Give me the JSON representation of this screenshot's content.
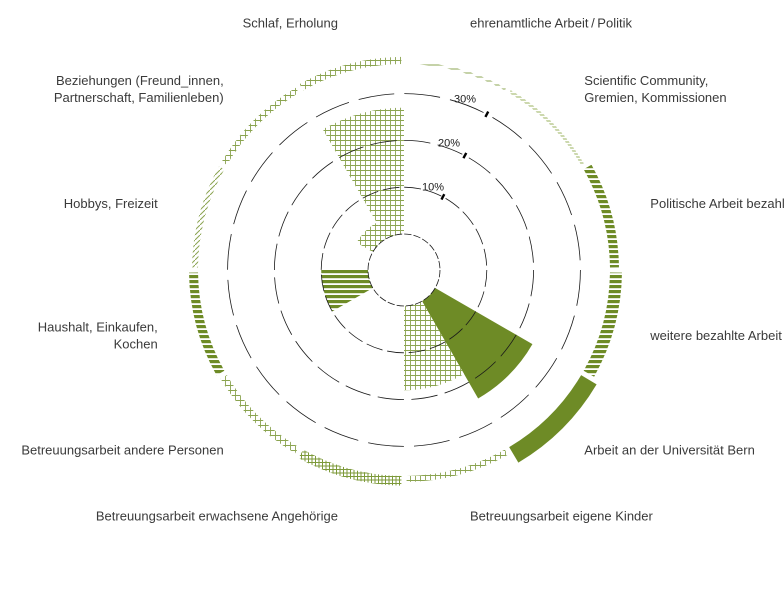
{
  "chart_data": {
    "type": "radial-bar",
    "title": "",
    "accent_color": "#6e8b26",
    "radial_ticks": [
      "10%",
      "20%",
      "30%"
    ],
    "radial_max": 30,
    "categories": [
      {
        "label": "ehrenamtliche Arbeit / Politik",
        "label_lines": [
          "ehrenamtliche Arbeit / Politik"
        ],
        "inner_value": 0,
        "outer_value": 0.4,
        "pattern": "hlines"
      },
      {
        "label": "Scientific Community, Gremien, Kommissionen",
        "label_lines": [
          "Scientific Community,",
          "Gremien, Kommissionen"
        ],
        "inner_value": 0,
        "outer_value": 0.5,
        "pattern": "hlines-dense"
      },
      {
        "label": "Politische Arbeit bezahlt",
        "label_lines": [
          "Politische Arbeit bezahlt"
        ],
        "inner_value": 0,
        "outer_value": 1.5,
        "pattern": "hbars"
      },
      {
        "label": "weitere bezahlte Arbeit",
        "label_lines": [
          "weitere bezahlte Arbeit"
        ],
        "inner_value": 0,
        "outer_value": 2.0,
        "pattern": "hbars"
      },
      {
        "label": "Arbeit an der Universität Bern",
        "label_lines": [
          "Arbeit an der Universität Bern"
        ],
        "inner_value": 24,
        "outer_value": 3.0,
        "pattern": "solid"
      },
      {
        "label": "Betreuungsarbeit eigene Kinder",
        "label_lines": [
          "Betreuungsarbeit eigene Kinder"
        ],
        "inner_value": 18,
        "outer_value": 1.0,
        "pattern": "grid"
      },
      {
        "label": "Betreuungsarbeit erwachsene Angehörige",
        "label_lines": [
          "Betreuungsarbeit erwachsene Angehörige"
        ],
        "inner_value": 0,
        "outer_value": 1.6,
        "pattern": "grid-dense"
      },
      {
        "label": "Betreuungsarbeit andere Personen",
        "label_lines": [
          "Betreuungsarbeit andere Personen"
        ],
        "inner_value": 0,
        "outer_value": 1.2,
        "pattern": "grid"
      },
      {
        "label": "Haushalt, Einkaufen, Kochen",
        "label_lines": [
          "Haushalt, Einkaufen,",
          "Kochen"
        ],
        "inner_value": 10,
        "outer_value": 1.5,
        "pattern": "hbars"
      },
      {
        "label": "Hobbys, Freizeit",
        "label_lines": [
          "Hobbys, Freizeit"
        ],
        "inner_value": 0,
        "outer_value": 1.0,
        "pattern": "diag"
      },
      {
        "label": "Beziehungen (Freund_innen, Partnerschaft, Familienleben)",
        "label_lines": [
          "Beziehungen (Freund_innen,",
          "Partnerschaft, Familienleben)"
        ],
        "inner_value": 4,
        "outer_value": 1.0,
        "pattern": "grid"
      },
      {
        "label": "Schlaf, Erholung",
        "label_lines": [
          "Schlaf, Erholung"
        ],
        "inner_value": 27,
        "outer_value": 1.2,
        "pattern": "grid"
      }
    ]
  }
}
